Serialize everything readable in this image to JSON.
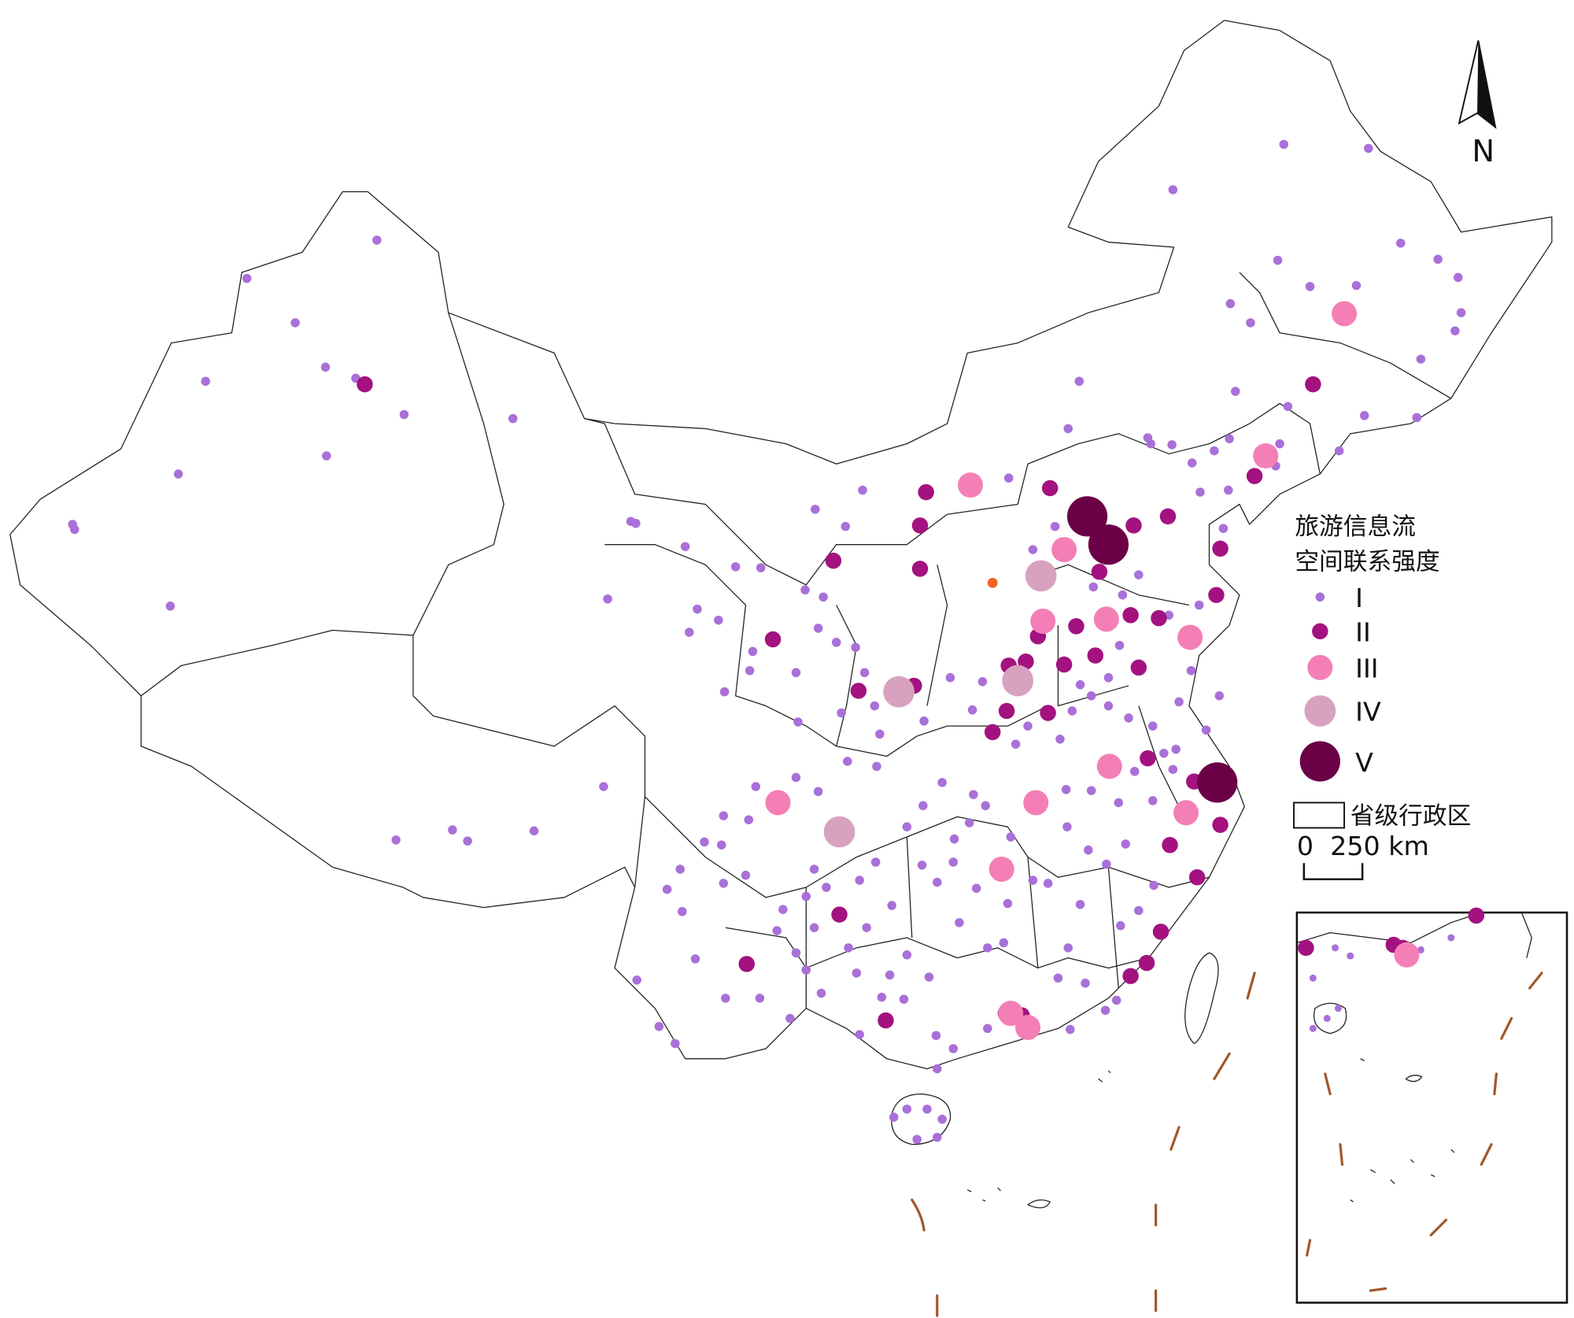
{
  "legend": {
    "title": [
      "旅游信息流",
      "空间联系强度"
    ],
    "items": [
      {
        "label": "I",
        "color": "#a970d8"
      },
      {
        "label": "II",
        "color": "#a3127f"
      },
      {
        "label": "III",
        "color": "#f47fb6"
      },
      {
        "label": "IV",
        "color": "#d7a2bf"
      },
      {
        "label": "V",
        "color": "#6b0046"
      }
    ],
    "boundary": "省级行政区"
  },
  "scale": {
    "start": 0,
    "end": "250 km"
  },
  "north": "N"
}
